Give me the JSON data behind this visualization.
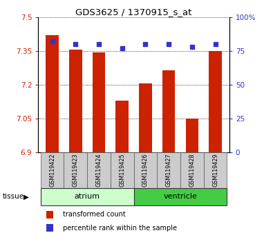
{
  "title": "GDS3625 / 1370915_s_at",
  "samples": [
    "GSM119422",
    "GSM119423",
    "GSM119424",
    "GSM119425",
    "GSM119426",
    "GSM119427",
    "GSM119428",
    "GSM119429"
  ],
  "bar_values": [
    7.42,
    7.355,
    7.345,
    7.13,
    7.205,
    7.265,
    7.05,
    7.35
  ],
  "percentile_values": [
    82,
    80,
    80,
    77,
    80,
    80,
    78,
    80
  ],
  "ylim_left": [
    6.9,
    7.5
  ],
  "ylim_right": [
    0,
    100
  ],
  "yticks_left": [
    6.9,
    7.05,
    7.2,
    7.35,
    7.5
  ],
  "yticks_right": [
    0,
    25,
    50,
    75,
    100
  ],
  "ytick_labels_left": [
    "6.9",
    "7.05",
    "7.2",
    "7.35",
    "7.5"
  ],
  "ytick_labels_right": [
    "0",
    "25",
    "50",
    "75",
    "100%"
  ],
  "bar_color": "#cc2200",
  "dot_color": "#3333cc",
  "background_color": "#ffffff",
  "tissue_groups": [
    {
      "label": "atrium",
      "samples_range": [
        0,
        3
      ],
      "color": "#ccffcc"
    },
    {
      "label": "ventricle",
      "samples_range": [
        4,
        7
      ],
      "color": "#44cc44"
    }
  ],
  "legend_items": [
    {
      "label": "transformed count",
      "color": "#cc2200"
    },
    {
      "label": "percentile rank within the sample",
      "color": "#3333cc"
    }
  ],
  "tissue_label": "tissue",
  "bar_width": 0.55,
  "base_value": 6.9
}
